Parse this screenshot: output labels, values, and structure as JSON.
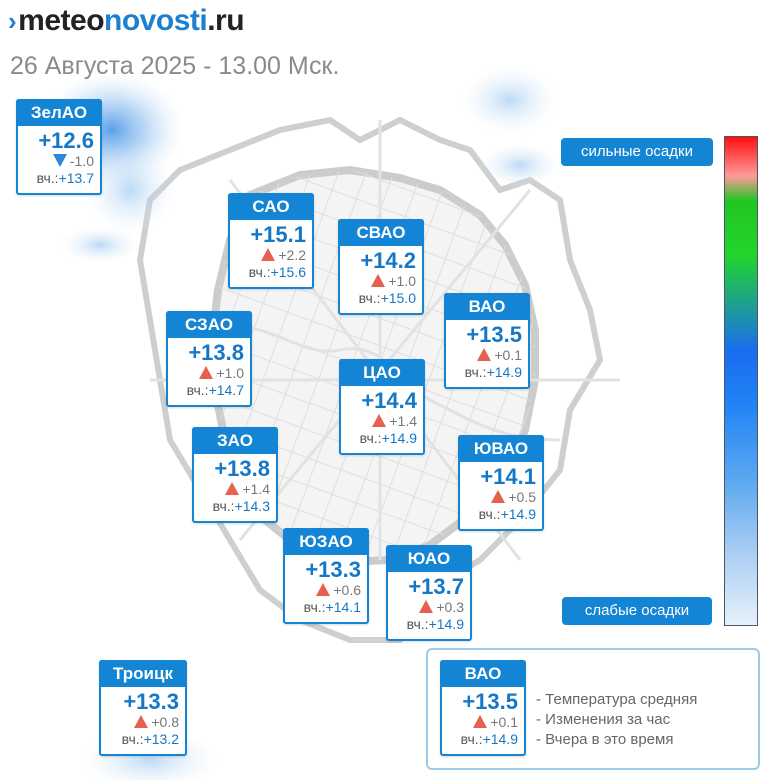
{
  "header": {
    "logo_part1": "meteo",
    "logo_part2": "novosti",
    "logo_part3": ".ru",
    "date": "26 Августа 2025 - 13.00 Мск."
  },
  "districts": [
    {
      "name": "ЗелАО",
      "temp": "+12.6",
      "change": "-1.0",
      "trend": "down",
      "yest_label": "вч.:",
      "yesterday": "+13.7"
    },
    {
      "name": "САО",
      "temp": "+15.1",
      "change": "+2.2",
      "trend": "up",
      "yest_label": "вч.:",
      "yesterday": "+15.6"
    },
    {
      "name": "СВАО",
      "temp": "+14.2",
      "change": "+1.0",
      "trend": "up",
      "yest_label": "вч.:",
      "yesterday": "+15.0"
    },
    {
      "name": "ВАО",
      "temp": "+13.5",
      "change": "+0.1",
      "trend": "up",
      "yest_label": "вч.:",
      "yesterday": "+14.9"
    },
    {
      "name": "СЗАО",
      "temp": "+13.8",
      "change": "+1.0",
      "trend": "up",
      "yest_label": "вч.:",
      "yesterday": "+14.7"
    },
    {
      "name": "ЦАО",
      "temp": "+14.4",
      "change": "+1.4",
      "trend": "up",
      "yest_label": "вч.:",
      "yesterday": "+14.9"
    },
    {
      "name": "ЗАО",
      "temp": "+13.8",
      "change": "+1.4",
      "trend": "up",
      "yest_label": "вч.:",
      "yesterday": "+14.3"
    },
    {
      "name": "ЮВАО",
      "temp": "+14.1",
      "change": "+0.5",
      "trend": "up",
      "yest_label": "вч.:",
      "yesterday": "+14.9"
    },
    {
      "name": "ЮЗАО",
      "temp": "+13.3",
      "change": "+0.6",
      "trend": "up",
      "yest_label": "вч.:",
      "yesterday": "+14.1"
    },
    {
      "name": "ЮАО",
      "temp": "+13.7",
      "change": "+0.3",
      "trend": "up",
      "yest_label": "вч.:",
      "yesterday": "+14.9"
    },
    {
      "name": "Троицк",
      "temp": "+13.3",
      "change": "+0.8",
      "trend": "up",
      "yest_label": "вч.:",
      "yesterday": "+13.2"
    }
  ],
  "precip_scale": {
    "high_label": "сильные осадки",
    "low_label": "слабые осадки",
    "colors": [
      "#ff1010",
      "#22c522",
      "#1a6cf0",
      "#e6f1fb"
    ]
  },
  "legend": {
    "sample": {
      "name": "ВАО",
      "temp": "+13.5",
      "change": "+0.1",
      "trend": "up",
      "yest_label": "вч.:",
      "yesterday": "+14.9"
    },
    "items": [
      "- Температура средняя",
      "- Изменения за час",
      "- Вчера в это время"
    ]
  },
  "colors": {
    "accent": "#1485d4",
    "up": "#e5604e",
    "down": "#2e86d6"
  }
}
